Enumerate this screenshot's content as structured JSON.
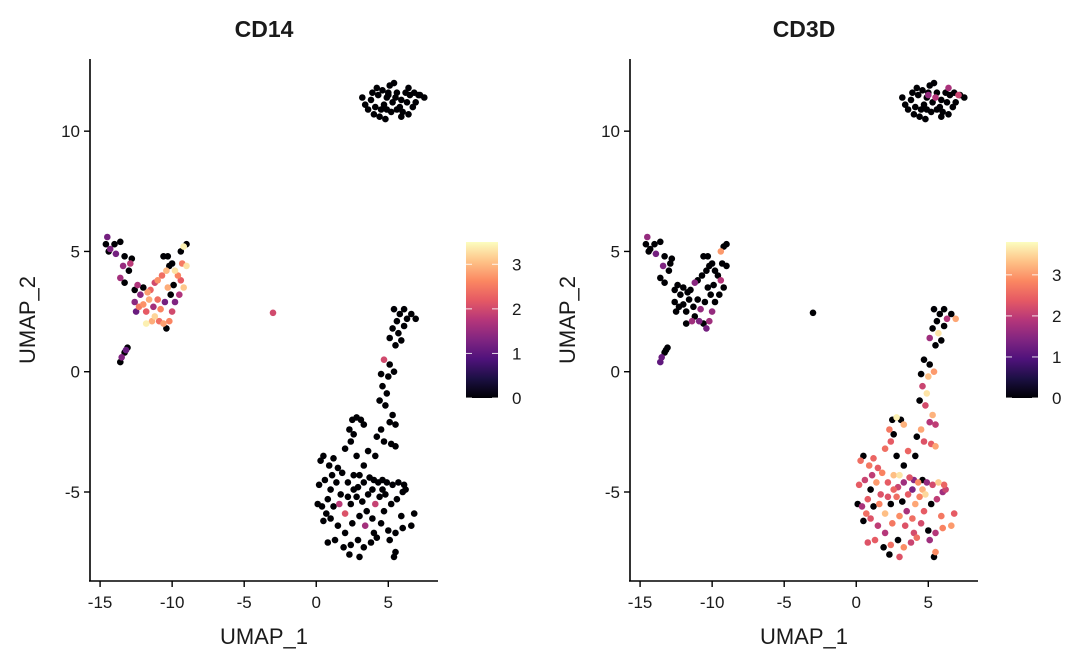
{
  "chart_data": [
    {
      "type": "scatter",
      "title": "CD14",
      "feature": "CD14",
      "xlabel": "UMAP_1",
      "ylabel": "UMAP_2",
      "xlim": [
        -15.7,
        8.45
      ],
      "ylim": [
        -8.7,
        13.0
      ],
      "xticks": [
        -15,
        -10,
        -5,
        0,
        5
      ],
      "yticks": [
        -5,
        0,
        5,
        10
      ],
      "xtick_labels": [
        "-15",
        "-10",
        "-5",
        "0",
        "5"
      ],
      "ytick_labels": [
        "-5",
        "0",
        "5",
        "10"
      ],
      "grid": false,
      "legend": {
        "placement": "right",
        "type": "colorbar",
        "colormap": "magma",
        "range": [
          0,
          3.5
        ],
        "ticks": [
          0,
          1,
          2,
          3
        ],
        "tick_labels": [
          "0",
          "1",
          "2",
          "3"
        ]
      },
      "value_index": 2
    },
    {
      "type": "scatter",
      "title": "CD3D",
      "feature": "CD3D",
      "xlabel": "UMAP_1",
      "ylabel": "UMAP_2",
      "xlim": [
        -15.7,
        8.45
      ],
      "ylim": [
        -8.7,
        13.0
      ],
      "xticks": [
        -15,
        -10,
        -5,
        0,
        5
      ],
      "yticks": [
        -5,
        0,
        5,
        10
      ],
      "xtick_labels": [
        "-15",
        "-10",
        "-5",
        "0",
        "5"
      ],
      "ytick_labels": [
        "-5",
        "0",
        "5",
        "10"
      ],
      "grid": false,
      "legend": {
        "placement": "right",
        "type": "colorbar",
        "colormap": "magma",
        "range": [
          0,
          3.8
        ],
        "ticks": [
          0,
          1,
          2,
          3
        ],
        "tick_labels": [
          "0",
          "1",
          "2",
          "3"
        ]
      },
      "value_index": 3
    }
  ],
  "colormap_stops": [
    "#000004",
    "#1c1044",
    "#4f127b",
    "#812581",
    "#b5367a",
    "#e55964",
    "#fb8761",
    "#fec287",
    "#fcfdbf"
  ],
  "points_columns": [
    "UMAP_1",
    "UMAP_2",
    "CD14",
    "CD3D"
  ],
  "points": [
    [
      3.4,
      11.1,
      0,
      0
    ],
    [
      3.8,
      11.3,
      0,
      0
    ],
    [
      4.1,
      11.0,
      0,
      0
    ],
    [
      4.3,
      11.5,
      0,
      0
    ],
    [
      4.6,
      11.7,
      0,
      0
    ],
    [
      4.9,
      11.4,
      0,
      0
    ],
    [
      5.1,
      11.9,
      0,
      0
    ],
    [
      5.4,
      12.0,
      0,
      0
    ],
    [
      5.6,
      11.6,
      0,
      0
    ],
    [
      5.9,
      11.3,
      0,
      0
    ],
    [
      6.2,
      11.6,
      0,
      0
    ],
    [
      6.5,
      11.5,
      0,
      0
    ],
    [
      6.8,
      11.6,
      0,
      0
    ],
    [
      7.2,
      11.5,
      0,
      0
    ],
    [
      7.5,
      11.4,
      0,
      0
    ],
    [
      4.0,
      10.7,
      0,
      0
    ],
    [
      4.4,
      10.6,
      0,
      0
    ],
    [
      4.8,
      10.5,
      0,
      0
    ],
    [
      5.2,
      10.8,
      0,
      0
    ],
    [
      5.6,
      10.9,
      0,
      0
    ],
    [
      6.0,
      10.8,
      0,
      0
    ],
    [
      6.4,
      10.7,
      0,
      0
    ],
    [
      3.6,
      10.9,
      0,
      0
    ],
    [
      4.7,
      11.1,
      0,
      0
    ],
    [
      5.3,
      11.2,
      0,
      0
    ],
    [
      5.8,
      11.0,
      0,
      0
    ],
    [
      6.3,
      11.2,
      0,
      0
    ],
    [
      6.7,
      11.0,
      0,
      0
    ],
    [
      3.2,
      11.4,
      0,
      0
    ],
    [
      4.2,
      11.8,
      0,
      0
    ],
    [
      5.0,
      11.6,
      0,
      0
    ],
    [
      5.5,
      11.4,
      0,
      1.9
    ],
    [
      5.0,
      11.5,
      0,
      1.6
    ],
    [
      6.4,
      11.8,
      0,
      1.8
    ],
    [
      7.1,
      11.5,
      0,
      2.1
    ],
    [
      4.5,
      10.9,
      0,
      0
    ],
    [
      5.9,
      10.6,
      0,
      0
    ],
    [
      6.9,
      11.2,
      0,
      0
    ],
    [
      3.9,
      11.6,
      0,
      0
    ],
    [
      4.9,
      10.9,
      0,
      0
    ],
    [
      -14.5,
      5.6,
      1.2,
      1.6
    ],
    [
      -14.6,
      5.3,
      0,
      0
    ],
    [
      -14.3,
      5.1,
      1.3,
      0
    ],
    [
      -14.0,
      5.3,
      0,
      0
    ],
    [
      -13.6,
      5.4,
      0,
      0
    ],
    [
      -13.9,
      4.9,
      1.2,
      1.3
    ],
    [
      -14.4,
      5.0,
      0,
      0
    ],
    [
      -13.3,
      4.8,
      0,
      0
    ],
    [
      -12.8,
      4.7,
      0,
      0
    ],
    [
      -13.0,
      4.2,
      0,
      0
    ],
    [
      -13.4,
      4.4,
      1.5,
      1.4
    ],
    [
      -12.9,
      4.5,
      1.8,
      0
    ],
    [
      -13.3,
      3.7,
      0,
      0
    ],
    [
      -13.6,
      3.9,
      1.6,
      0
    ],
    [
      -12.6,
      3.4,
      0,
      0
    ],
    [
      -12.4,
      3.6,
      1.7,
      0
    ],
    [
      -12.6,
      2.9,
      1.4,
      0
    ],
    [
      -12.3,
      2.7,
      2.5,
      0
    ],
    [
      -12.5,
      2.5,
      1.1,
      0
    ],
    [
      -12.0,
      2.8,
      2.7,
      0
    ],
    [
      -11.6,
      3.0,
      2.9,
      0
    ],
    [
      -11.8,
      2.5,
      2.2,
      0
    ],
    [
      -11.3,
      2.7,
      1.6,
      0
    ],
    [
      -11.0,
      3.0,
      2.4,
      0
    ],
    [
      -10.8,
      2.6,
      2.6,
      1.6
    ],
    [
      -10.5,
      2.9,
      1.2,
      0
    ],
    [
      -11.2,
      2.3,
      3.2,
      0
    ],
    [
      -10.9,
      2.1,
      2.4,
      1.4
    ],
    [
      -10.6,
      2.0,
      2.8,
      0
    ],
    [
      -10.4,
      1.8,
      0,
      1.3
    ],
    [
      -10.2,
      2.1,
      2.6,
      1.7
    ],
    [
      -11.8,
      2.0,
      3.4,
      0
    ],
    [
      -11.5,
      3.4,
      2.3,
      0
    ],
    [
      -11.2,
      3.7,
      2.0,
      1.5
    ],
    [
      -11.0,
      3.8,
      2.7,
      0
    ],
    [
      -10.7,
      4.0,
      2.4,
      0
    ],
    [
      -10.4,
      4.2,
      3.0,
      0
    ],
    [
      -10.2,
      4.4,
      0,
      0
    ],
    [
      -10.0,
      4.5,
      0,
      0
    ],
    [
      -9.8,
      4.2,
      3.3,
      0
    ],
    [
      -9.6,
      4.0,
      2.6,
      0
    ],
    [
      -9.4,
      3.8,
      2.2,
      1.9
    ],
    [
      -9.2,
      3.5,
      3.1,
      0
    ],
    [
      -9.5,
      3.2,
      1.7,
      0
    ],
    [
      -9.9,
      3.6,
      0,
      0
    ],
    [
      -10.3,
      3.5,
      2.9,
      0
    ],
    [
      -9.3,
      4.5,
      2.5,
      0
    ],
    [
      -9.0,
      4.4,
      3.3,
      0
    ],
    [
      -9.2,
      5.2,
      3.4,
      0
    ],
    [
      -9.4,
      5.0,
      0,
      3.0
    ],
    [
      -9.0,
      5.3,
      0,
      0
    ],
    [
      -10.6,
      4.8,
      0,
      0
    ],
    [
      -10.3,
      4.8,
      0,
      0
    ],
    [
      -12.0,
      3.5,
      0,
      0
    ],
    [
      -11.7,
      3.3,
      2.8,
      0
    ],
    [
      -12.2,
      3.2,
      1.4,
      0
    ],
    [
      -11.4,
      2.1,
      2.9,
      1.7
    ],
    [
      -10.0,
      2.5,
      2.0,
      1.6
    ],
    [
      -9.8,
      2.9,
      1.3,
      0
    ],
    [
      -10.1,
      3.2,
      0,
      0
    ],
    [
      -13.1,
      1.0,
      0,
      0
    ],
    [
      -13.3,
      0.8,
      0,
      0
    ],
    [
      -13.5,
      0.6,
      1.3,
      1.2
    ],
    [
      -13.6,
      0.4,
      0,
      1.1
    ],
    [
      -13.2,
      0.9,
      1.1,
      0
    ],
    [
      -3.0,
      2.45,
      2.0,
      0
    ],
    [
      5.4,
      2.6,
      0,
      0
    ],
    [
      5.8,
      2.4,
      0,
      0
    ],
    [
      6.1,
      2.6,
      0,
      0
    ],
    [
      5.6,
      2.1,
      0,
      0
    ],
    [
      6.3,
      2.2,
      0,
      1.9
    ],
    [
      5.3,
      1.8,
      0,
      0
    ],
    [
      5.7,
      1.6,
      0,
      3.6
    ],
    [
      5.1,
      1.4,
      0,
      1.7
    ],
    [
      6.6,
      2.4,
      0,
      0
    ],
    [
      6.1,
      1.9,
      0,
      0
    ],
    [
      5.9,
      1.3,
      0,
      0
    ],
    [
      6.9,
      2.2,
      0,
      3.1
    ],
    [
      5.5,
      1.1,
      0,
      0
    ],
    [
      4.7,
      0.5,
      2.0,
      0
    ],
    [
      5.1,
      0.3,
      0,
      0
    ],
    [
      4.5,
      -0.1,
      0,
      0
    ],
    [
      5.0,
      -0.2,
      0,
      3.3
    ],
    [
      5.4,
      0.0,
      0,
      3.0
    ],
    [
      4.6,
      -0.6,
      0,
      2.1
    ],
    [
      4.9,
      -0.9,
      0,
      3.6
    ],
    [
      4.4,
      -1.2,
      0,
      0
    ],
    [
      4.8,
      -1.4,
      0,
      2.2
    ],
    [
      5.3,
      -1.8,
      0,
      3.2
    ],
    [
      5.1,
      -2.1,
      0,
      1.9
    ],
    [
      4.5,
      -2.4,
      0,
      3.1
    ],
    [
      4.2,
      -2.7,
      0,
      0
    ],
    [
      5.5,
      -2.2,
      0,
      2.0
    ],
    [
      4.7,
      -2.9,
      0,
      2.3
    ],
    [
      5.2,
      -3.0,
      0,
      2.4
    ],
    [
      5.5,
      -3.1,
      0,
      3.1
    ],
    [
      4.1,
      -3.5,
      0,
      0
    ],
    [
      3.6,
      -3.3,
      0,
      2.5
    ],
    [
      2.5,
      -2.0,
      0,
      0
    ],
    [
      2.8,
      -1.9,
      0,
      3.7
    ],
    [
      3.1,
      -2.0,
      0,
      0
    ],
    [
      2.3,
      -2.4,
      0,
      2.7
    ],
    [
      2.6,
      -2.6,
      0,
      0
    ],
    [
      3.3,
      -2.2,
      0,
      3.2
    ],
    [
      2.0,
      -3.2,
      0,
      2.6
    ],
    [
      2.8,
      -3.5,
      0,
      0
    ],
    [
      2.4,
      -2.9,
      0,
      2.4
    ],
    [
      3.3,
      -3.9,
      0,
      0
    ],
    [
      3.0,
      -4.3,
      0,
      3.6
    ],
    [
      0.3,
      -3.7,
      0,
      2.6
    ],
    [
      0.5,
      -3.5,
      0,
      0
    ],
    [
      0.9,
      -3.9,
      0,
      2.7
    ],
    [
      1.2,
      -3.6,
      0,
      2.5
    ],
    [
      1.5,
      -4.0,
      0,
      2.4
    ],
    [
      0.6,
      -4.5,
      0,
      2.1
    ],
    [
      0.2,
      -4.7,
      0,
      2.4
    ],
    [
      1.0,
      -4.9,
      0,
      0
    ],
    [
      1.4,
      -4.6,
      0,
      3.0
    ],
    [
      1.8,
      -4.2,
      0,
      2.8
    ],
    [
      2.2,
      -4.6,
      0,
      2.4
    ],
    [
      2.6,
      -4.3,
      0,
      3.3
    ],
    [
      2.9,
      -4.8,
      0,
      2.1
    ],
    [
      3.3,
      -4.6,
      0,
      1.7
    ],
    [
      3.7,
      -4.4,
      0,
      2.3
    ],
    [
      4.0,
      -4.5,
      0,
      1.5
    ],
    [
      4.3,
      -4.6,
      0,
      2.9
    ],
    [
      4.6,
      -4.5,
      0,
      0
    ],
    [
      4.9,
      -4.6,
      0,
      1.6
    ],
    [
      5.3,
      -4.7,
      0,
      2.2
    ],
    [
      5.7,
      -4.6,
      0,
      3.4
    ],
    [
      6.1,
      -4.7,
      0,
      2.5
    ],
    [
      6.2,
      -4.9,
      0,
      2.1
    ],
    [
      0.1,
      -5.5,
      0,
      0
    ],
    [
      0.4,
      -5.6,
      0,
      1.8
    ],
    [
      0.8,
      -5.3,
      0,
      2.4
    ],
    [
      1.2,
      -5.6,
      0,
      0
    ],
    [
      1.6,
      -5.5,
      1.8,
      2.8
    ],
    [
      2.0,
      -5.9,
      2.1,
      3.3
    ],
    [
      2.4,
      -5.5,
      0,
      0
    ],
    [
      2.8,
      -5.2,
      0,
      2.6
    ],
    [
      3.2,
      -5.4,
      0,
      0
    ],
    [
      3.6,
      -5.1,
      0,
      2.4
    ],
    [
      4.1,
      -5.5,
      1.9,
      3.1
    ],
    [
      4.4,
      -5.2,
      0,
      2.8
    ],
    [
      4.8,
      -5.1,
      0,
      3.5
    ],
    [
      5.2,
      -5.5,
      0,
      0
    ],
    [
      5.6,
      -5.3,
      0,
      2.0
    ],
    [
      6.0,
      -5.0,
      0,
      1.7
    ],
    [
      6.8,
      -5.9,
      0,
      2.4
    ],
    [
      0.5,
      -6.2,
      0,
      0
    ],
    [
      1.0,
      -6.1,
      0,
      2.3
    ],
    [
      1.5,
      -6.4,
      0,
      2.0
    ],
    [
      2.0,
      -6.7,
      0,
      1.9
    ],
    [
      2.5,
      -6.3,
      0,
      2.7
    ],
    [
      3.0,
      -6.0,
      0,
      2.9
    ],
    [
      3.4,
      -6.4,
      1.6,
      2.3
    ],
    [
      3.9,
      -6.1,
      0,
      2.6
    ],
    [
      4.5,
      -6.3,
      0,
      2.2
    ],
    [
      5.0,
      -6.6,
      0,
      0
    ],
    [
      5.5,
      -6.7,
      0,
      1.9
    ],
    [
      6.0,
      -6.5,
      0,
      2.8
    ],
    [
      6.6,
      -6.4,
      0,
      3.0
    ],
    [
      0.8,
      -7.1,
      0,
      2.3
    ],
    [
      1.3,
      -7.0,
      0,
      2.4
    ],
    [
      1.9,
      -7.3,
      0,
      0
    ],
    [
      2.4,
      -7.2,
      0,
      2.6
    ],
    [
      2.9,
      -7.0,
      0,
      0
    ],
    [
      3.3,
      -7.3,
      0,
      2.9
    ],
    [
      3.8,
      -7.1,
      0,
      2.1
    ],
    [
      4.2,
      -6.9,
      0,
      2.6
    ],
    [
      5.1,
      -7.0,
      0,
      1.7
    ],
    [
      5.5,
      -7.5,
      0,
      2.9
    ],
    [
      2.3,
      -7.6,
      0,
      0
    ],
    [
      3.0,
      -7.7,
      0,
      2.3
    ],
    [
      5.4,
      -7.7,
      0,
      0
    ],
    [
      2.6,
      -4.9,
      0,
      2.5
    ],
    [
      3.5,
      -5.8,
      0,
      1.8
    ],
    [
      4.7,
      -5.8,
      0,
      2.4
    ],
    [
      1.7,
      -5.1,
      0,
      2.3
    ],
    [
      0.7,
      -5.9,
      0,
      2.6
    ],
    [
      5.9,
      -6.0,
      0,
      2.7
    ],
    [
      4.0,
      -6.7,
      0,
      2.2
    ],
    [
      2.2,
      -5.2,
      0,
      2.3
    ],
    [
      1.1,
      -4.3,
      0,
      2.0
    ],
    [
      3.9,
      -4.9,
      0,
      1.4
    ],
    [
      4.6,
      -4.9,
      0,
      3.2
    ]
  ]
}
